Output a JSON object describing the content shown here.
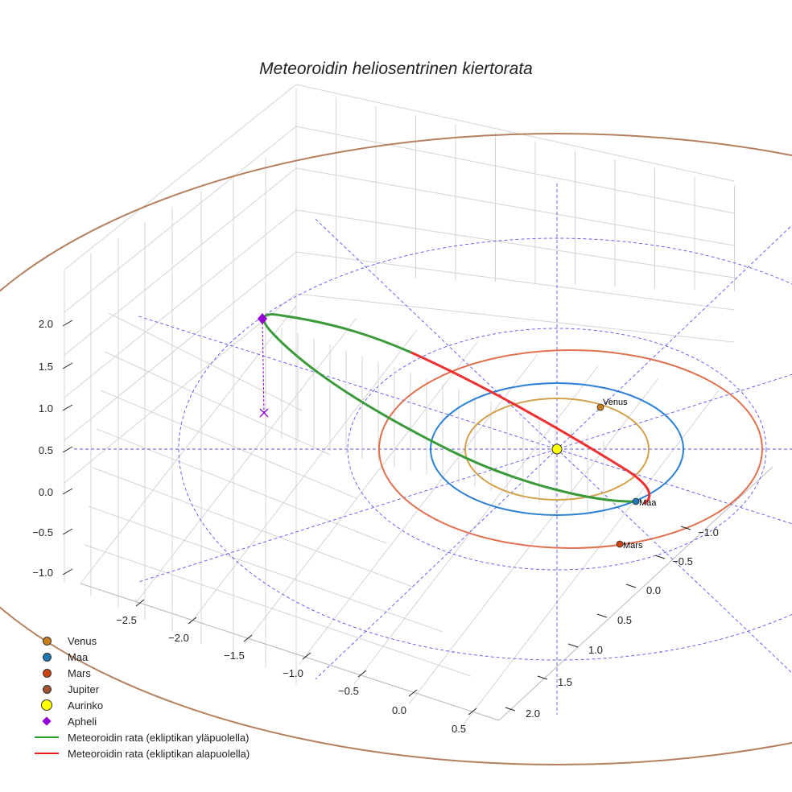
{
  "chart_data": {
    "type": "scatter3d",
    "title": "Meteoroidin heliosentrinen kiertorata",
    "z_ticks": [
      "2.0",
      "1.5",
      "1.0",
      "0.5",
      "0.0",
      "−0.5",
      "−1.0"
    ],
    "x_ticks": [
      "−2.5",
      "−2.0",
      "−1.5",
      "−1.0",
      "−0.5",
      "0.0",
      "0.5"
    ],
    "y_ticks": [
      "−1.0",
      "−0.5",
      "0.0",
      "0.5",
      "1.0",
      "1.5",
      "2.0"
    ],
    "xlim": [
      -2.8,
      0.7
    ],
    "ylim": [
      -1.2,
      2.2
    ],
    "zlim": [
      -1.1,
      2.3
    ],
    "planets": [
      {
        "name": "Venus",
        "label": "Venus",
        "radius_au": 0.72,
        "color": "#c88a2e"
      },
      {
        "name": "Maa",
        "label": "Maa",
        "radius_au": 1.0,
        "color": "#1f77b4"
      },
      {
        "name": "Mars",
        "label": "Mars",
        "radius_au": 1.52,
        "color": "#d9541e"
      },
      {
        "name": "Jupiter",
        "label": "",
        "radius_au": 5.2,
        "color": "#b5805f"
      }
    ],
    "legend": [
      {
        "label": "Venus",
        "kind": "dot",
        "color": "#c87f1a"
      },
      {
        "label": "Maa",
        "kind": "dot",
        "color": "#1f77b4"
      },
      {
        "label": "Mars",
        "kind": "dot",
        "color": "#cc4411"
      },
      {
        "label": "Jupiter",
        "kind": "dot",
        "color": "#a0522d"
      },
      {
        "label": "Aurinko",
        "kind": "sun",
        "color": "#ffff00"
      },
      {
        "label": "Apheli",
        "kind": "diamond",
        "color": "#9400d3"
      },
      {
        "label": "Meteoroidin rata (ekliptikan yläpuolella)",
        "kind": "line",
        "color": "#2ca02c"
      },
      {
        "label": "Meteoroidin rata (ekliptikan alapuolella)",
        "kind": "line",
        "color": "#e82020"
      }
    ],
    "legend_position": "bottom-left"
  }
}
